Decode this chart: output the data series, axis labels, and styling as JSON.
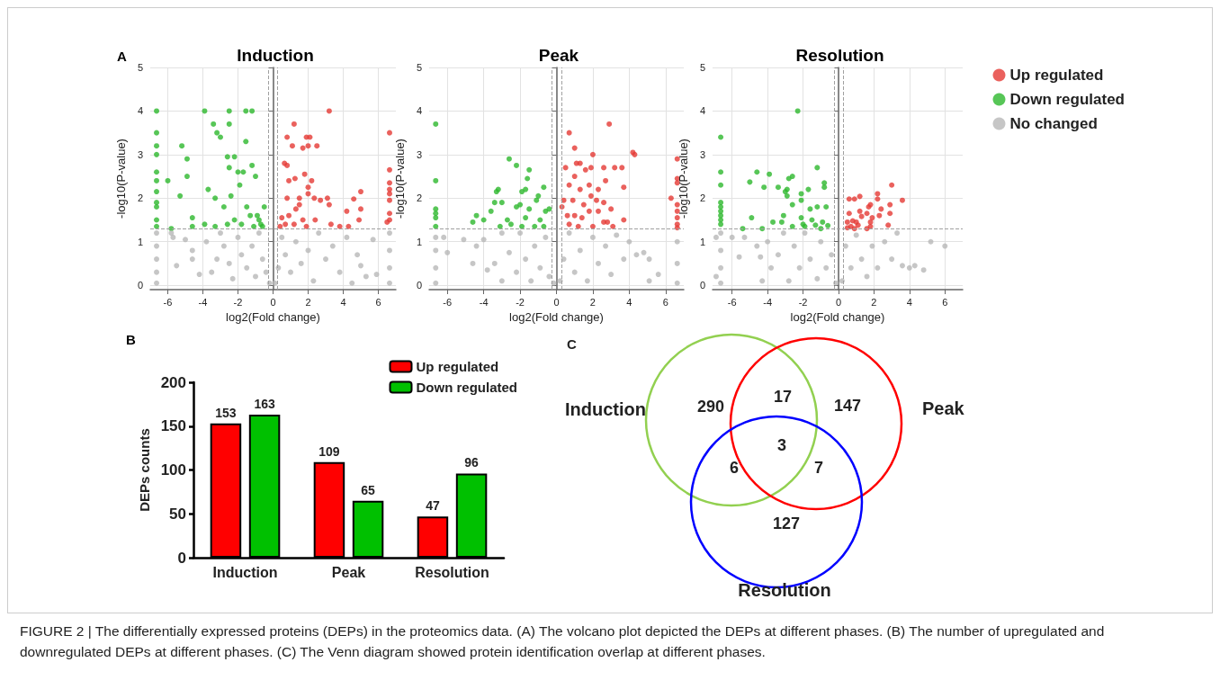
{
  "chart_data": [
    {
      "type": "scatter",
      "title": "Induction",
      "xlabel": "log2(Fold change)",
      "ylabel": "-log10(P-value)",
      "xlim": [
        -7,
        7
      ],
      "xticks": [
        -6,
        -4,
        -2,
        0,
        2,
        4,
        6
      ],
      "ylim": [
        -0.1,
        5
      ],
      "yticks": [
        0,
        1,
        2,
        3,
        4,
        5
      ],
      "grid": true,
      "marker": "circle",
      "legend": false,
      "annotations": [
        "A"
      ],
      "ref_lines": [
        {
          "axis": "y",
          "value": 1.3,
          "line_style": "dashed",
          "color": "#a0a0a0"
        },
        {
          "axis": "x",
          "value": -0.26,
          "line_style": "dashed",
          "color": "#a0a0a0"
        },
        {
          "axis": "x",
          "value": 0.26,
          "line_style": "dashed",
          "color": "#a0a0a0"
        }
      ],
      "series": [
        {
          "color": "#e53935",
          "x": [
            3.2,
            1.2,
            0.8,
            1.9,
            2.1,
            1.1,
            2.0,
            2.5,
            1.7,
            0.65,
            0.8,
            1.8,
            0.9,
            1.25,
            2.2,
            2.0,
            2.0,
            0.8,
            1.5,
            2.35,
            3.1,
            2.7,
            4.6,
            5.0,
            5.0,
            4.2,
            3.2,
            0.5,
            0.9,
            1.3,
            1.7,
            2.4,
            0.7,
            1.2,
            1.9,
            3.3,
            3.8,
            4.3,
            4.9,
            6.64,
            6.64,
            6.64,
            6.64,
            6.64,
            6.64,
            6.64,
            6.64,
            6.5,
            0.4,
            1.5
          ],
          "values": [
            4.0,
            3.7,
            3.4,
            3.4,
            3.4,
            3.2,
            3.2,
            3.2,
            3.15,
            2.8,
            2.75,
            2.55,
            2.4,
            2.45,
            2.4,
            2.25,
            2.1,
            2.0,
            2.0,
            2.0,
            2.0,
            1.95,
            1.98,
            2.15,
            1.75,
            1.7,
            1.85,
            1.55,
            1.6,
            1.75,
            1.5,
            1.5,
            1.4,
            1.4,
            1.35,
            1.4,
            1.35,
            1.35,
            1.5,
            3.5,
            2.65,
            2.35,
            2.2,
            2.1,
            1.95,
            1.65,
            1.5,
            1.45,
            1.35,
            1.85
          ]
        },
        {
          "color": "#2db82d",
          "x": [
            -6.64,
            -6.64,
            -6.64,
            -6.64,
            -6.64,
            -6.64,
            -6.64,
            -6.64,
            -6.64,
            -6.64,
            -6.64,
            -6.0,
            -5.8,
            -5.3,
            -5.2,
            -4.9,
            -4.9,
            -4.6,
            -4.6,
            -3.9,
            -3.9,
            -3.7,
            -3.4,
            -3.3,
            -3.2,
            -3.0,
            -2.6,
            -2.5,
            -2.5,
            -2.5,
            -2.4,
            -2.2,
            -2.0,
            -1.9,
            -1.7,
            -1.55,
            -1.55,
            -1.5,
            -1.2,
            -1.2,
            -1.0,
            -0.9,
            -0.8,
            -2.8,
            -2.2,
            -1.8,
            -1.3,
            -0.7,
            -0.5,
            -0.6,
            -3.3,
            -2.6,
            -1.1
          ],
          "values": [
            4.0,
            3.5,
            3.2,
            3.0,
            2.6,
            2.4,
            2.15,
            1.9,
            1.8,
            1.5,
            1.35,
            2.4,
            1.3,
            2.05,
            3.2,
            2.9,
            2.5,
            1.55,
            1.35,
            4.0,
            1.4,
            2.2,
            3.7,
            2.0,
            3.5,
            3.4,
            2.95,
            4.0,
            3.7,
            2.7,
            2.05,
            2.95,
            2.6,
            2.3,
            2.6,
            4.0,
            3.3,
            1.8,
            4.0,
            2.75,
            2.5,
            1.6,
            1.5,
            1.8,
            1.5,
            1.4,
            1.6,
            1.4,
            1.8,
            1.35,
            1.35,
            1.4,
            1.35
          ]
        },
        {
          "color": "#b8b8b8",
          "x": [
            -6.64,
            -6.64,
            -6.64,
            -6.64,
            -6.64,
            6.64,
            6.64,
            6.64,
            6.64,
            -5.8,
            -5.7,
            -5.5,
            -5.0,
            -4.6,
            -4.6,
            -4.2,
            -3.8,
            -3.5,
            -3.2,
            -3.0,
            -2.8,
            -2.5,
            -2.3,
            -2.0,
            -1.8,
            -1.5,
            -1.2,
            -1.0,
            -0.8,
            -0.6,
            -0.4,
            -0.2,
            0.1,
            0.3,
            0.5,
            0.7,
            1.0,
            1.3,
            1.6,
            2.0,
            2.3,
            2.6,
            3.0,
            3.4,
            3.8,
            4.2,
            4.8,
            5.0,
            5.3,
            5.7,
            5.9,
            4.5
          ],
          "values": [
            0.05,
            0.3,
            0.6,
            0.9,
            1.2,
            0.05,
            0.4,
            0.8,
            1.2,
            1.2,
            1.1,
            0.45,
            1.05,
            0.8,
            0.6,
            0.25,
            1.0,
            0.3,
            0.6,
            1.2,
            0.9,
            0.5,
            0.15,
            1.1,
            0.7,
            0.4,
            0.9,
            0.2,
            1.2,
            0.6,
            0.3,
            0.05,
            0.05,
            0.4,
            1.1,
            0.7,
            0.3,
            1.0,
            0.5,
            0.8,
            0.1,
            1.2,
            0.6,
            0.9,
            0.3,
            1.1,
            0.7,
            0.45,
            0.2,
            1.05,
            0.25,
            0.05
          ]
        }
      ]
    },
    {
      "type": "scatter",
      "title": "Peak",
      "xlabel": "log2(Fold change)",
      "ylabel": "-log10(P-value)",
      "xlim": [
        -7,
        7
      ],
      "xticks": [
        -6,
        -4,
        -2,
        0,
        2,
        4,
        6
      ],
      "ylim": [
        -0.1,
        5
      ],
      "yticks": [
        0,
        1,
        2,
        3,
        4,
        5
      ],
      "grid": true,
      "marker": "circle",
      "legend": false,
      "ref_lines": [
        {
          "axis": "y",
          "value": 1.3,
          "line_style": "dashed",
          "color": "#a0a0a0"
        },
        {
          "axis": "x",
          "value": -0.26,
          "line_style": "dashed",
          "color": "#a0a0a0"
        },
        {
          "axis": "x",
          "value": 0.26,
          "line_style": "dashed",
          "color": "#a0a0a0"
        }
      ],
      "series": [
        {
          "color": "#e53935",
          "x": [
            2.9,
            0.7,
            1.0,
            4.2,
            4.3,
            2.0,
            0.5,
            1.1,
            1.3,
            1.9,
            2.6,
            3.2,
            3.6,
            0.7,
            1.0,
            1.6,
            1.8,
            2.7,
            3.7,
            1.3,
            2.3,
            0.4,
            0.9,
            1.5,
            2.2,
            2.6,
            6.3,
            0.6,
            1.0,
            1.4,
            1.8,
            2.3,
            2.8,
            3.7,
            0.7,
            1.2,
            2.0,
            2.6,
            3.1,
            6.64,
            6.64,
            6.64,
            6.64,
            6.64,
            6.64,
            6.64,
            6.64,
            0.3,
            1.9,
            3.0
          ],
          "values": [
            3.7,
            3.5,
            3.15,
            3.05,
            3.0,
            3.0,
            2.7,
            2.8,
            2.8,
            2.7,
            2.7,
            2.7,
            2.7,
            2.3,
            2.5,
            2.65,
            2.3,
            2.4,
            2.25,
            2.2,
            2.2,
            1.95,
            1.95,
            1.85,
            1.95,
            1.9,
            2.0,
            1.6,
            1.6,
            1.55,
            1.7,
            1.7,
            1.45,
            1.5,
            1.4,
            1.35,
            1.35,
            1.45,
            1.35,
            2.9,
            2.45,
            2.35,
            1.85,
            1.7,
            1.55,
            1.4,
            1.32,
            1.8,
            2.05,
            1.75
          ]
        },
        {
          "color": "#2db82d",
          "x": [
            -6.64,
            -6.64,
            -6.64,
            -6.64,
            -6.64,
            -6.64,
            -4.6,
            -4.4,
            -4.0,
            -3.6,
            -3.4,
            -3.2,
            -3.3,
            -3.0,
            -2.6,
            -2.2,
            -2.2,
            -2.0,
            -1.9,
            -1.7,
            -1.6,
            -1.5,
            -1.5,
            -1.7,
            -1.1,
            -1.0,
            -0.7,
            -0.9,
            -0.6,
            -0.4,
            -2.7,
            -2.5,
            -1.9,
            -1.2,
            -0.7,
            -3.1
          ],
          "values": [
            3.7,
            2.4,
            1.75,
            1.65,
            1.55,
            1.35,
            1.45,
            1.6,
            1.5,
            1.7,
            1.9,
            2.2,
            2.15,
            1.9,
            2.9,
            2.75,
            1.8,
            1.85,
            2.15,
            2.2,
            2.45,
            2.65,
            1.75,
            1.55,
            1.95,
            2.05,
            2.25,
            1.5,
            1.7,
            1.75,
            1.5,
            1.4,
            1.35,
            1.35,
            1.35,
            1.35
          ]
        },
        {
          "color": "#b8b8b8",
          "x": [
            -6.64,
            -6.64,
            -6.64,
            -6.64,
            6.64,
            6.64,
            6.64,
            -6.2,
            -6.0,
            -5.1,
            -4.6,
            -4.4,
            -4.0,
            -3.8,
            -3.4,
            -3.0,
            -3.0,
            -2.6,
            -2.2,
            -2.0,
            -1.7,
            -1.4,
            -1.2,
            -0.9,
            -0.6,
            -0.4,
            -0.15,
            0.2,
            0.4,
            0.7,
            1.0,
            1.3,
            1.7,
            2.0,
            2.3,
            2.7,
            3.0,
            3.3,
            3.7,
            4.0,
            4.4,
            4.8,
            5.1,
            5.1,
            5.6
          ],
          "values": [
            0.05,
            0.4,
            0.8,
            1.1,
            0.05,
            0.5,
            1.0,
            1.1,
            0.75,
            1.05,
            0.5,
            0.9,
            1.05,
            0.35,
            0.5,
            1.2,
            0.1,
            0.75,
            0.3,
            1.2,
            0.6,
            0.1,
            0.9,
            0.4,
            1.1,
            0.2,
            0.05,
            0.1,
            0.6,
            1.2,
            0.3,
            0.8,
            0.1,
            1.1,
            0.5,
            0.9,
            0.25,
            1.15,
            0.6,
            1.0,
            0.7,
            0.75,
            0.6,
            0.1,
            0.25
          ]
        }
      ]
    },
    {
      "type": "scatter",
      "title": "Resolution",
      "xlabel": "log2(Fold change)",
      "ylabel": "-log10(P-value)",
      "xlim": [
        -7.1,
        7
      ],
      "xticks": [
        -6,
        -4,
        -2,
        0,
        2,
        4,
        6
      ],
      "ylim": [
        -0.1,
        5
      ],
      "yticks": [
        0,
        1,
        2,
        3,
        4,
        5
      ],
      "grid": true,
      "marker": "circle",
      "legend": "top right",
      "ref_lines": [
        {
          "axis": "y",
          "value": 1.3,
          "line_style": "dashed",
          "color": "#a0a0a0"
        },
        {
          "axis": "x",
          "value": -0.26,
          "line_style": "dashed",
          "color": "#a0a0a0"
        },
        {
          "axis": "x",
          "value": 0.26,
          "line_style": "dashed",
          "color": "#a0a0a0"
        }
      ],
      "series": [
        {
          "name": "Up regulated",
          "color": "#e53935",
          "x": [
            3.0,
            2.2,
            2.2,
            1.2,
            0.6,
            0.9,
            3.6,
            1.8,
            2.9,
            1.7,
            1.2,
            2.4,
            1.6,
            2.9,
            0.6,
            1.3,
            1.9,
            2.3,
            0.5,
            0.8,
            1.0,
            1.8,
            0.7,
            1.1,
            1.8,
            2.8,
            0.5,
            1.6,
            0.9
          ],
          "values": [
            2.3,
            2.1,
            1.98,
            2.04,
            1.98,
            1.98,
            1.95,
            1.85,
            1.85,
            1.8,
            1.7,
            1.75,
            1.65,
            1.65,
            1.65,
            1.58,
            1.55,
            1.6,
            1.45,
            1.48,
            1.45,
            1.45,
            1.35,
            1.38,
            1.35,
            1.38,
            1.32,
            1.3,
            1.3
          ]
        },
        {
          "name": "Down regulated",
          "color": "#2db82d",
          "x": [
            -6.64,
            -6.64,
            -6.64,
            -6.64,
            -6.64,
            -6.64,
            -6.64,
            -6.64,
            -6.64,
            -5.4,
            -5.0,
            -4.9,
            -4.6,
            -4.3,
            -4.2,
            -3.9,
            -3.7,
            -3.4,
            -3.2,
            -3.0,
            -2.9,
            -2.9,
            -2.8,
            -2.6,
            -2.6,
            -2.3,
            -2.1,
            -2.1,
            -1.7,
            -1.2,
            -0.8,
            -0.8,
            -0.7,
            -1.2,
            -1.6,
            -2.1,
            -1.5,
            -0.9,
            -2.6,
            -1.9,
            -1.3,
            -0.6,
            -3.1,
            -2.0,
            -1.0
          ],
          "values": [
            3.4,
            2.6,
            2.3,
            1.9,
            1.8,
            1.7,
            1.6,
            1.5,
            1.4,
            1.3,
            2.37,
            1.55,
            2.6,
            1.3,
            2.25,
            2.55,
            1.45,
            2.25,
            1.45,
            2.15,
            2.2,
            2.05,
            2.45,
            2.5,
            1.85,
            4.0,
            2.1,
            1.95,
            2.2,
            2.7,
            2.35,
            2.25,
            1.8,
            1.8,
            1.75,
            1.55,
            1.5,
            1.45,
            1.35,
            1.35,
            1.38,
            1.37,
            1.6,
            1.4,
            1.3
          ]
        },
        {
          "name": "No changed",
          "color": "#b8b8b8",
          "x": [
            -6.64,
            -6.64,
            -6.64,
            -6.64,
            -6.9,
            -6.9,
            -6.0,
            -5.6,
            -5.3,
            -4.6,
            -4.4,
            -4.3,
            -4.0,
            -3.8,
            -3.4,
            -3.1,
            -2.8,
            -2.5,
            -2.2,
            -1.9,
            -1.6,
            -1.2,
            -1.0,
            -0.7,
            -0.4,
            -0.15,
            0.2,
            0.4,
            0.7,
            1.0,
            1.3,
            1.6,
            1.9,
            2.2,
            2.6,
            3.0,
            3.3,
            3.6,
            4.0,
            4.3,
            4.8,
            5.2,
            6.0
          ],
          "values": [
            0.05,
            0.4,
            0.8,
            1.2,
            0.2,
            1.1,
            1.1,
            0.65,
            1.1,
            0.9,
            0.65,
            0.1,
            1.0,
            0.4,
            0.7,
            1.2,
            0.1,
            0.9,
            0.4,
            1.2,
            0.6,
            0.15,
            1.0,
            0.4,
            0.7,
            0.05,
            0.1,
            0.9,
            0.4,
            1.15,
            0.6,
            0.2,
            0.9,
            0.4,
            1.0,
            0.6,
            1.2,
            0.45,
            0.4,
            0.45,
            0.35,
            1.0,
            0.9
          ]
        }
      ]
    },
    {
      "type": "bar",
      "ylabel": "DEPs counts",
      "categories": [
        "Induction",
        "Peak",
        "Resolution"
      ],
      "ylim": [
        0,
        200
      ],
      "yticks": [
        0,
        50,
        100,
        150,
        200
      ],
      "grid": false,
      "legend": "top right",
      "data_labels": true,
      "annotations": [
        "B"
      ],
      "series": [
        {
          "name": "Up regulated",
          "color": "#ff0000",
          "values": [
            153,
            109,
            47
          ]
        },
        {
          "name": "Down regulated",
          "color": "#00c000",
          "values": [
            163,
            65,
            96
          ]
        }
      ]
    },
    {
      "type": "other",
      "annotations": [
        "C",
        "Induction",
        "Peak",
        "Resolution",
        "290",
        "147",
        "127",
        "17",
        "6",
        "7",
        "3",
        "FIGURE 2 | The differentially expressed proteins (DEPs) in the proteomics data. (A) The volcano plot depicted the DEPs at different phases. (B) The number of upregulated and downregulated DEPs at different phases. (C) The Venn diagram showed protein identification overlap at different phases."
      ]
    }
  ]
}
